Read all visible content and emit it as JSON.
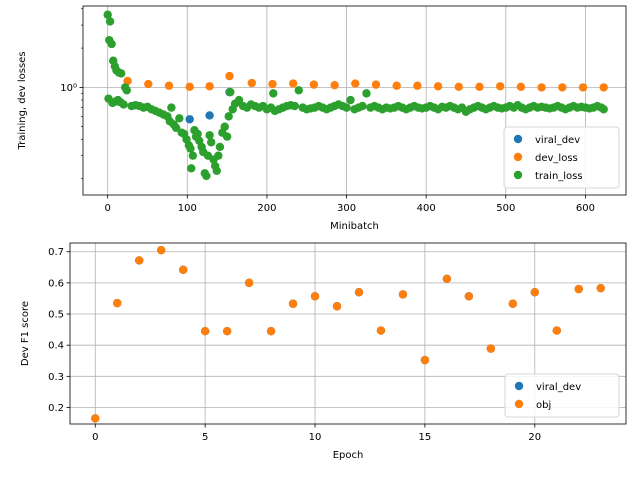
{
  "chart_data": [
    {
      "type": "scatter",
      "xlabel": "Minibatch",
      "ylabel": "Training, dev losses",
      "xlim": [
        -31,
        651
      ],
      "ylim": [
        0.15,
        4.2
      ],
      "yscale": "log",
      "xticks": [
        0,
        100,
        200,
        300,
        400,
        500,
        600
      ],
      "yticks": [
        {
          "value": 1.0,
          "label": "10⁰"
        }
      ],
      "yminor": [
        0.2,
        0.3,
        0.4,
        0.5,
        0.6,
        0.7,
        0.8,
        0.9,
        2,
        3,
        4
      ],
      "grid": true,
      "legend": "lower-right",
      "series": [
        {
          "name": "viral_dev",
          "color": "#1f77b4",
          "points": [
            [
              103,
              0.57
            ],
            [
              128,
              0.61
            ],
            [
              153,
              0.92
            ]
          ]
        },
        {
          "name": "dev_loss",
          "color": "#ff7f0e",
          "points": [
            [
              25,
              1.12
            ],
            [
              51,
              1.06
            ],
            [
              77,
              1.03
            ],
            [
              103,
              1.01
            ],
            [
              128,
              1.02
            ],
            [
              153,
              1.22
            ],
            [
              181,
              1.08
            ],
            [
              207,
              1.06
            ],
            [
              233,
              1.07
            ],
            [
              259,
              1.05
            ],
            [
              285,
              1.04
            ],
            [
              311,
              1.07
            ],
            [
              337,
              1.05
            ],
            [
              363,
              1.03
            ],
            [
              389,
              1.03
            ],
            [
              415,
              1.02
            ],
            [
              441,
              1.01
            ],
            [
              467,
              1.01
            ],
            [
              493,
              1.02
            ],
            [
              519,
              1.01
            ],
            [
              545,
              1.0
            ],
            [
              571,
              1.0
            ],
            [
              597,
              1.0
            ],
            [
              623,
              1.0
            ]
          ]
        },
        {
          "name": "train_loss",
          "color": "#2ca02c",
          "points": [
            [
              0,
              3.6
            ],
            [
              3,
              3.2
            ],
            [
              5,
              2.15
            ],
            [
              2,
              2.3
            ],
            [
              7,
              1.6
            ],
            [
              9,
              1.45
            ],
            [
              11,
              1.35
            ],
            [
              14,
              1.3
            ],
            [
              17,
              1.28
            ],
            [
              1,
              0.82
            ],
            [
              6,
              0.76
            ],
            [
              10,
              0.78
            ],
            [
              13,
              0.8
            ],
            [
              16,
              0.77
            ],
            [
              20,
              0.74
            ],
            [
              22,
              1.0
            ],
            [
              24,
              0.95
            ],
            [
              30,
              0.72
            ],
            [
              35,
              0.73
            ],
            [
              40,
              0.72
            ],
            [
              45,
              0.7
            ],
            [
              50,
              0.71
            ],
            [
              55,
              0.68
            ],
            [
              60,
              0.66
            ],
            [
              65,
              0.64
            ],
            [
              70,
              0.62
            ],
            [
              75,
              0.6
            ],
            [
              78,
              0.55
            ],
            [
              80,
              0.7
            ],
            [
              83,
              0.52
            ],
            [
              86,
              0.49
            ],
            [
              90,
              0.58
            ],
            [
              93,
              0.45
            ],
            [
              96,
              0.44
            ],
            [
              99,
              0.4
            ],
            [
              102,
              0.36
            ],
            [
              104,
              0.34
            ],
            [
              105,
              0.24
            ],
            [
              107,
              0.3
            ],
            [
              109,
              0.47
            ],
            [
              111,
              0.42
            ],
            [
              113,
              0.44
            ],
            [
              115,
              0.39
            ],
            [
              118,
              0.35
            ],
            [
              120,
              0.32
            ],
            [
              122,
              0.22
            ],
            [
              124,
              0.21
            ],
            [
              126,
              0.3
            ],
            [
              128,
              0.43
            ],
            [
              130,
              0.38
            ],
            [
              133,
              0.28
            ],
            [
              135,
              0.25
            ],
            [
              137,
              0.23
            ],
            [
              139,
              0.3
            ],
            [
              141,
              0.35
            ],
            [
              144,
              0.45
            ],
            [
              147,
              0.5
            ],
            [
              150,
              0.42
            ],
            [
              152,
              0.6
            ],
            [
              154,
              0.92
            ],
            [
              157,
              0.68
            ],
            [
              160,
              0.75
            ],
            [
              165,
              0.8
            ],
            [
              170,
              0.72
            ],
            [
              175,
              0.7
            ],
            [
              180,
              0.74
            ],
            [
              185,
              0.72
            ],
            [
              190,
              0.7
            ],
            [
              195,
              0.72
            ],
            [
              200,
              0.68
            ],
            [
              205,
              0.7
            ],
            [
              208,
              0.9
            ],
            [
              210,
              0.66
            ],
            [
              215,
              0.68
            ],
            [
              220,
              0.7
            ],
            [
              225,
              0.72
            ],
            [
              230,
              0.73
            ],
            [
              235,
              0.72
            ],
            [
              240,
              0.95
            ],
            [
              245,
              0.7
            ],
            [
              250,
              0.68
            ],
            [
              255,
              0.69
            ],
            [
              260,
              0.7
            ],
            [
              265,
              0.72
            ],
            [
              270,
              0.7
            ],
            [
              275,
              0.68
            ],
            [
              280,
              0.7
            ],
            [
              285,
              0.72
            ],
            [
              290,
              0.74
            ],
            [
              295,
              0.72
            ],
            [
              300,
              0.7
            ],
            [
              305,
              0.8
            ],
            [
              310,
              0.68
            ],
            [
              315,
              0.7
            ],
            [
              320,
              0.72
            ],
            [
              325,
              0.9
            ],
            [
              330,
              0.7
            ],
            [
              335,
              0.72
            ],
            [
              340,
              0.7
            ],
            [
              345,
              0.68
            ],
            [
              350,
              0.7
            ],
            [
              355,
              0.69
            ],
            [
              360,
              0.7
            ],
            [
              365,
              0.72
            ],
            [
              370,
              0.7
            ],
            [
              375,
              0.68
            ],
            [
              380,
              0.7
            ],
            [
              385,
              0.72
            ],
            [
              390,
              0.7
            ],
            [
              395,
              0.69
            ],
            [
              400,
              0.7
            ],
            [
              405,
              0.72
            ],
            [
              410,
              0.7
            ],
            [
              415,
              0.68
            ],
            [
              420,
              0.71
            ],
            [
              425,
              0.7
            ],
            [
              430,
              0.72
            ],
            [
              435,
              0.7
            ],
            [
              440,
              0.68
            ],
            [
              445,
              0.7
            ],
            [
              450,
              0.65
            ],
            [
              455,
              0.68
            ],
            [
              460,
              0.7
            ],
            [
              465,
              0.72
            ],
            [
              470,
              0.7
            ],
            [
              475,
              0.68
            ],
            [
              480,
              0.7
            ],
            [
              485,
              0.72
            ],
            [
              490,
              0.7
            ],
            [
              495,
              0.69
            ],
            [
              500,
              0.7
            ],
            [
              505,
              0.72
            ],
            [
              510,
              0.7
            ],
            [
              515,
              0.73
            ],
            [
              520,
              0.7
            ],
            [
              525,
              0.68
            ],
            [
              530,
              0.7
            ],
            [
              535,
              0.72
            ],
            [
              540,
              0.7
            ],
            [
              545,
              0.71
            ],
            [
              550,
              0.7
            ],
            [
              555,
              0.69
            ],
            [
              560,
              0.7
            ],
            [
              565,
              0.72
            ],
            [
              570,
              0.7
            ],
            [
              575,
              0.68
            ],
            [
              580,
              0.7
            ],
            [
              585,
              0.72
            ],
            [
              590,
              0.7
            ],
            [
              595,
              0.71
            ],
            [
              600,
              0.7
            ],
            [
              605,
              0.69
            ],
            [
              610,
              0.7
            ],
            [
              615,
              0.72
            ],
            [
              620,
              0.7
            ],
            [
              623,
              0.68
            ]
          ]
        }
      ]
    },
    {
      "type": "scatter",
      "xlabel": "Epoch",
      "ylabel": "Dev F1 score",
      "xlim": [
        -1.15,
        24.15
      ],
      "ylim": [
        0.147,
        0.728
      ],
      "xticks": [
        0,
        5,
        10,
        15,
        20
      ],
      "yticks": [
        0.2,
        0.3,
        0.4,
        0.5,
        0.6,
        0.7
      ],
      "grid": true,
      "legend": "lower-right",
      "series": [
        {
          "name": "viral_dev",
          "color": "#1f77b4",
          "points": [
            [
              0,
              0.165
            ],
            [
              1,
              0.535
            ],
            [
              2,
              0.672
            ],
            [
              3,
              0.705
            ],
            [
              4,
              0.642
            ],
            [
              5,
              0.445
            ],
            [
              6,
              0.445
            ],
            [
              7,
              0.6
            ],
            [
              8,
              0.445
            ],
            [
              9,
              0.533
            ],
            [
              10,
              0.557
            ],
            [
              11,
              0.525
            ],
            [
              12,
              0.57
            ],
            [
              13,
              0.447
            ],
            [
              14,
              0.563
            ],
            [
              15,
              0.352
            ],
            [
              16,
              0.613
            ],
            [
              17,
              0.557
            ],
            [
              18,
              0.389
            ],
            [
              19,
              0.533
            ],
            [
              20,
              0.57
            ],
            [
              21,
              0.447
            ],
            [
              22,
              0.58
            ],
            [
              23,
              0.583
            ]
          ]
        },
        {
          "name": "obj",
          "color": "#ff7f0e",
          "points": [
            [
              0,
              0.165
            ],
            [
              1,
              0.535
            ],
            [
              2,
              0.672
            ],
            [
              3,
              0.705
            ],
            [
              4,
              0.642
            ],
            [
              5,
              0.445
            ],
            [
              6,
              0.445
            ],
            [
              7,
              0.6
            ],
            [
              8,
              0.445
            ],
            [
              9,
              0.533
            ],
            [
              10,
              0.557
            ],
            [
              11,
              0.525
            ],
            [
              12,
              0.57
            ],
            [
              13,
              0.447
            ],
            [
              14,
              0.563
            ],
            [
              15,
              0.352
            ],
            [
              16,
              0.613
            ],
            [
              17,
              0.557
            ],
            [
              18,
              0.389
            ],
            [
              19,
              0.533
            ],
            [
              20,
              0.57
            ],
            [
              21,
              0.447
            ],
            [
              22,
              0.58
            ],
            [
              23,
              0.583
            ]
          ]
        }
      ]
    }
  ]
}
